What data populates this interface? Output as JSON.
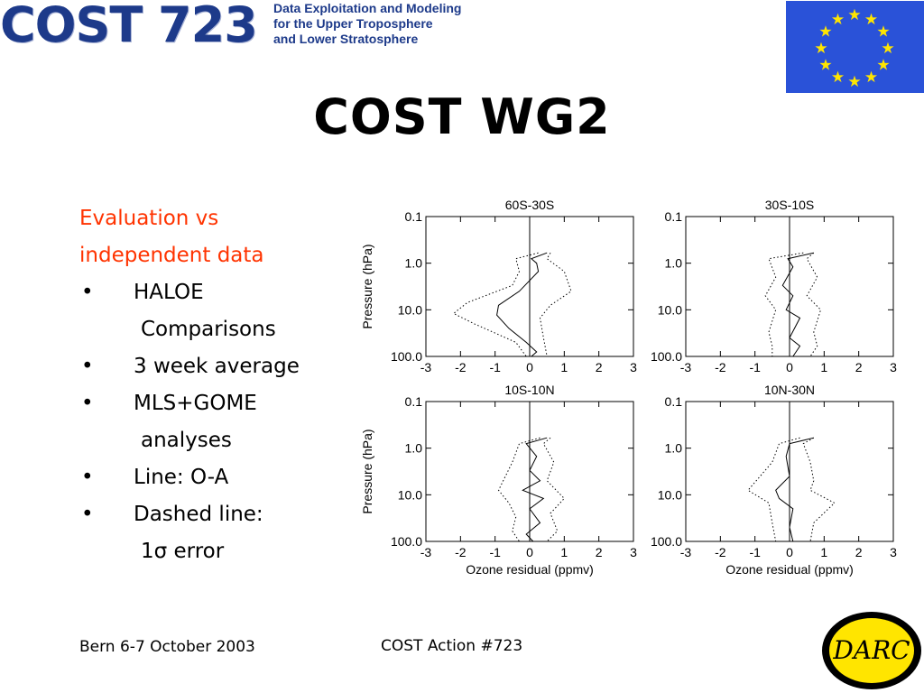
{
  "header": {
    "logo_text": "COST 723",
    "tagline": [
      "Data Exploitation and Modeling",
      "for the Upper Troposphere",
      "and Lower Stratosphere"
    ],
    "flag_colors": {
      "background": "#2a52d8",
      "stars": "#ffe500"
    }
  },
  "title": "COST WG2",
  "bullets": {
    "heading1": "Evaluation vs",
    "heading2": "independent data",
    "bullet_char": "•",
    "items": [
      {
        "text": "HALOE",
        "cont": "Comparisons"
      },
      {
        "text": "3 week average"
      },
      {
        "text": "MLS+GOME",
        "cont": "analyses"
      },
      {
        "text": "Line: O-A"
      },
      {
        "text": "Dashed line:",
        "cont": "1σ error"
      }
    ]
  },
  "chart_data": [
    {
      "type": "line",
      "title": "60S-30S",
      "ylabel": "Pressure (hPa)",
      "xlabel": "",
      "xlim": [
        -3,
        3
      ],
      "ylim": [
        100.0,
        0.1
      ],
      "yscale": "log",
      "xticks": [
        "-3",
        "-2",
        "-1",
        "0",
        "1",
        "2",
        "3"
      ],
      "yticks": [
        "0.1",
        "1.0",
        "10.0",
        "100.0"
      ],
      "series": [
        {
          "style": "solid",
          "x": [
            0.5,
            0.05,
            0.2,
            0.25,
            -0.3,
            -0.9,
            -0.95,
            -0.6,
            -0.1,
            0.2,
            0.05
          ],
          "y": [
            0.6,
            0.8,
            1.0,
            1.5,
            4.0,
            8.0,
            13.0,
            25.0,
            50.0,
            80.0,
            100.0
          ]
        },
        {
          "style": "dotted",
          "x": [
            0.25,
            -0.4,
            -0.3,
            -0.5,
            -1.8,
            -2.2,
            -1.6,
            -0.4,
            -0.1
          ],
          "y": [
            0.6,
            0.8,
            1.5,
            3.0,
            7.0,
            12.0,
            20.0,
            50.0,
            100.0
          ]
        },
        {
          "style": "dotted",
          "x": [
            0.6,
            0.5,
            1.0,
            1.2,
            0.6,
            0.3,
            0.4,
            0.5
          ],
          "y": [
            0.6,
            0.8,
            1.5,
            4.0,
            8.0,
            15.0,
            40.0,
            100.0
          ]
        }
      ]
    },
    {
      "type": "line",
      "title": "30S-10S",
      "ylabel": "",
      "xlabel": "",
      "xlim": [
        -3,
        3
      ],
      "ylim": [
        100.0,
        0.1
      ],
      "yscale": "log",
      "xticks": [
        "-3",
        "-2",
        "-1",
        "0",
        "1",
        "2",
        "3"
      ],
      "yticks": [
        "0.1",
        "1.0",
        "10.0",
        "100.0"
      ],
      "series": [
        {
          "style": "solid",
          "x": [
            0.7,
            -0.05,
            0.1,
            -0.2,
            0.1,
            -0.1,
            0.3,
            0.0,
            0.3,
            0.1
          ],
          "y": [
            0.6,
            0.8,
            1.2,
            3.0,
            5.0,
            10.0,
            15.0,
            40.0,
            60.0,
            100.0
          ]
        },
        {
          "style": "dotted",
          "x": [
            0.4,
            -0.6,
            -0.4,
            -0.7,
            -0.4,
            -0.6,
            -0.5,
            -0.5
          ],
          "y": [
            0.6,
            0.8,
            2.0,
            5.0,
            10.0,
            30.0,
            60.0,
            100.0
          ]
        },
        {
          "style": "dotted",
          "x": [
            0.7,
            0.5,
            0.8,
            0.5,
            0.9,
            0.7,
            0.8,
            0.6
          ],
          "y": [
            0.6,
            0.8,
            2.0,
            5.0,
            10.0,
            30.0,
            60.0,
            100.0
          ]
        }
      ]
    },
    {
      "type": "line",
      "title": "10S-10N",
      "ylabel": "Pressure (hPa)",
      "xlabel": "Ozone residual (ppmv)",
      "xlim": [
        -3,
        3
      ],
      "ylim": [
        100.0,
        0.1
      ],
      "yscale": "log",
      "xticks": [
        "-3",
        "-2",
        "-1",
        "0",
        "1",
        "2",
        "3"
      ],
      "yticks": [
        "0.1",
        "1.0",
        "10.0",
        "100.0"
      ],
      "series": [
        {
          "style": "solid",
          "x": [
            0.5,
            -0.1,
            0.2,
            0.0,
            0.3,
            -0.2,
            0.4,
            0.0,
            0.3,
            -0.1,
            0.1
          ],
          "y": [
            0.6,
            0.8,
            1.5,
            3.0,
            5.0,
            8.0,
            12.0,
            20.0,
            40.0,
            70.0,
            100.0
          ]
        },
        {
          "style": "dotted",
          "x": [
            0.3,
            -0.3,
            -0.5,
            -0.9,
            -0.6,
            -0.4,
            -0.5,
            -0.3
          ],
          "y": [
            0.6,
            0.8,
            2.0,
            8.0,
            15.0,
            30.0,
            60.0,
            100.0
          ]
        },
        {
          "style": "dotted",
          "x": [
            0.6,
            0.4,
            0.7,
            0.5,
            1.0,
            0.6,
            0.8,
            0.5
          ],
          "y": [
            0.6,
            0.8,
            2.0,
            5.0,
            12.0,
            25.0,
            60.0,
            100.0
          ]
        }
      ]
    },
    {
      "type": "line",
      "title": "10N-30N",
      "ylabel": "",
      "xlabel": "Ozone residual (ppmv)",
      "xlim": [
        -3,
        3
      ],
      "ylim": [
        100.0,
        0.1
      ],
      "yscale": "log",
      "xticks": [
        "-3",
        "-2",
        "-1",
        "0",
        "1",
        "2",
        "3"
      ],
      "yticks": [
        "0.1",
        "1.0",
        "10.0",
        "100.0"
      ],
      "series": [
        {
          "style": "solid",
          "x": [
            0.7,
            0.0,
            -0.1,
            0.0,
            -0.4,
            -0.3,
            0.1,
            0.0,
            0.1
          ],
          "y": [
            0.6,
            0.8,
            1.5,
            4.0,
            8.0,
            12.0,
            20.0,
            50.0,
            100.0
          ]
        },
        {
          "style": "dotted",
          "x": [
            0.3,
            -0.3,
            -0.5,
            -1.2,
            -0.6,
            -0.5,
            -0.4
          ],
          "y": [
            0.6,
            0.8,
            2.0,
            8.0,
            15.0,
            40.0,
            100.0
          ]
        },
        {
          "style": "dotted",
          "x": [
            0.7,
            0.4,
            0.6,
            0.7,
            0.6,
            1.3,
            0.7,
            0.6
          ],
          "y": [
            0.6,
            0.8,
            2.0,
            5.0,
            8.0,
            15.0,
            40.0,
            100.0
          ]
        }
      ]
    }
  ],
  "footer": {
    "left": "Bern 6-7 October 2003",
    "center": "COST Action #723",
    "logo_text": "DARC",
    "logo_colors": {
      "ring": "#000000",
      "fill": "#ffe500",
      "text": "#000000"
    }
  }
}
